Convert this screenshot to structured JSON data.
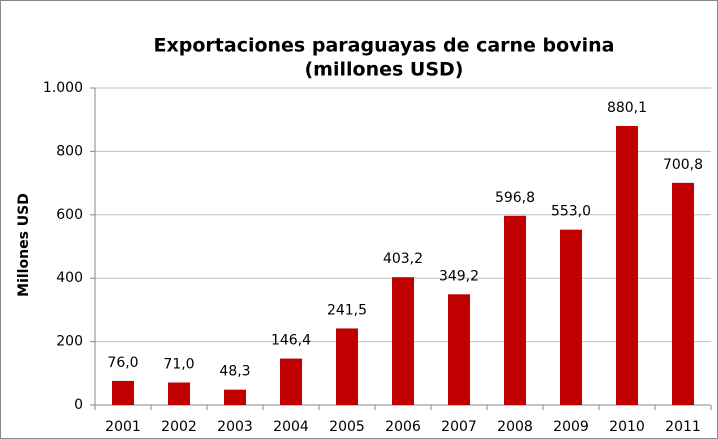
{
  "chart_data": {
    "type": "bar",
    "title": [
      "Exportaciones paraguayas de carne bovina",
      "(millones USD)"
    ],
    "y_label": "Millones USD",
    "categories": [
      "2001",
      "2002",
      "2003",
      "2004",
      "2005",
      "2006",
      "2007",
      "2008",
      "2009",
      "2010",
      "2011"
    ],
    "values": [
      76.0,
      71.0,
      48.3,
      146.4,
      241.5,
      403.2,
      349.2,
      596.8,
      553.0,
      880.1,
      700.8
    ],
    "value_labels": [
      "76,0",
      "71,0",
      "48,3",
      "146,4",
      "241,5",
      "403,2",
      "349,2",
      "596,8",
      "553,0",
      "880,1",
      "700,8"
    ],
    "color": "#c00000",
    "ylim": [
      0,
      1000
    ],
    "yticks": [
      0,
      200,
      400,
      600,
      800,
      {
        "value": 1000,
        "label": "1.000"
      }
    ],
    "grid": true
  }
}
